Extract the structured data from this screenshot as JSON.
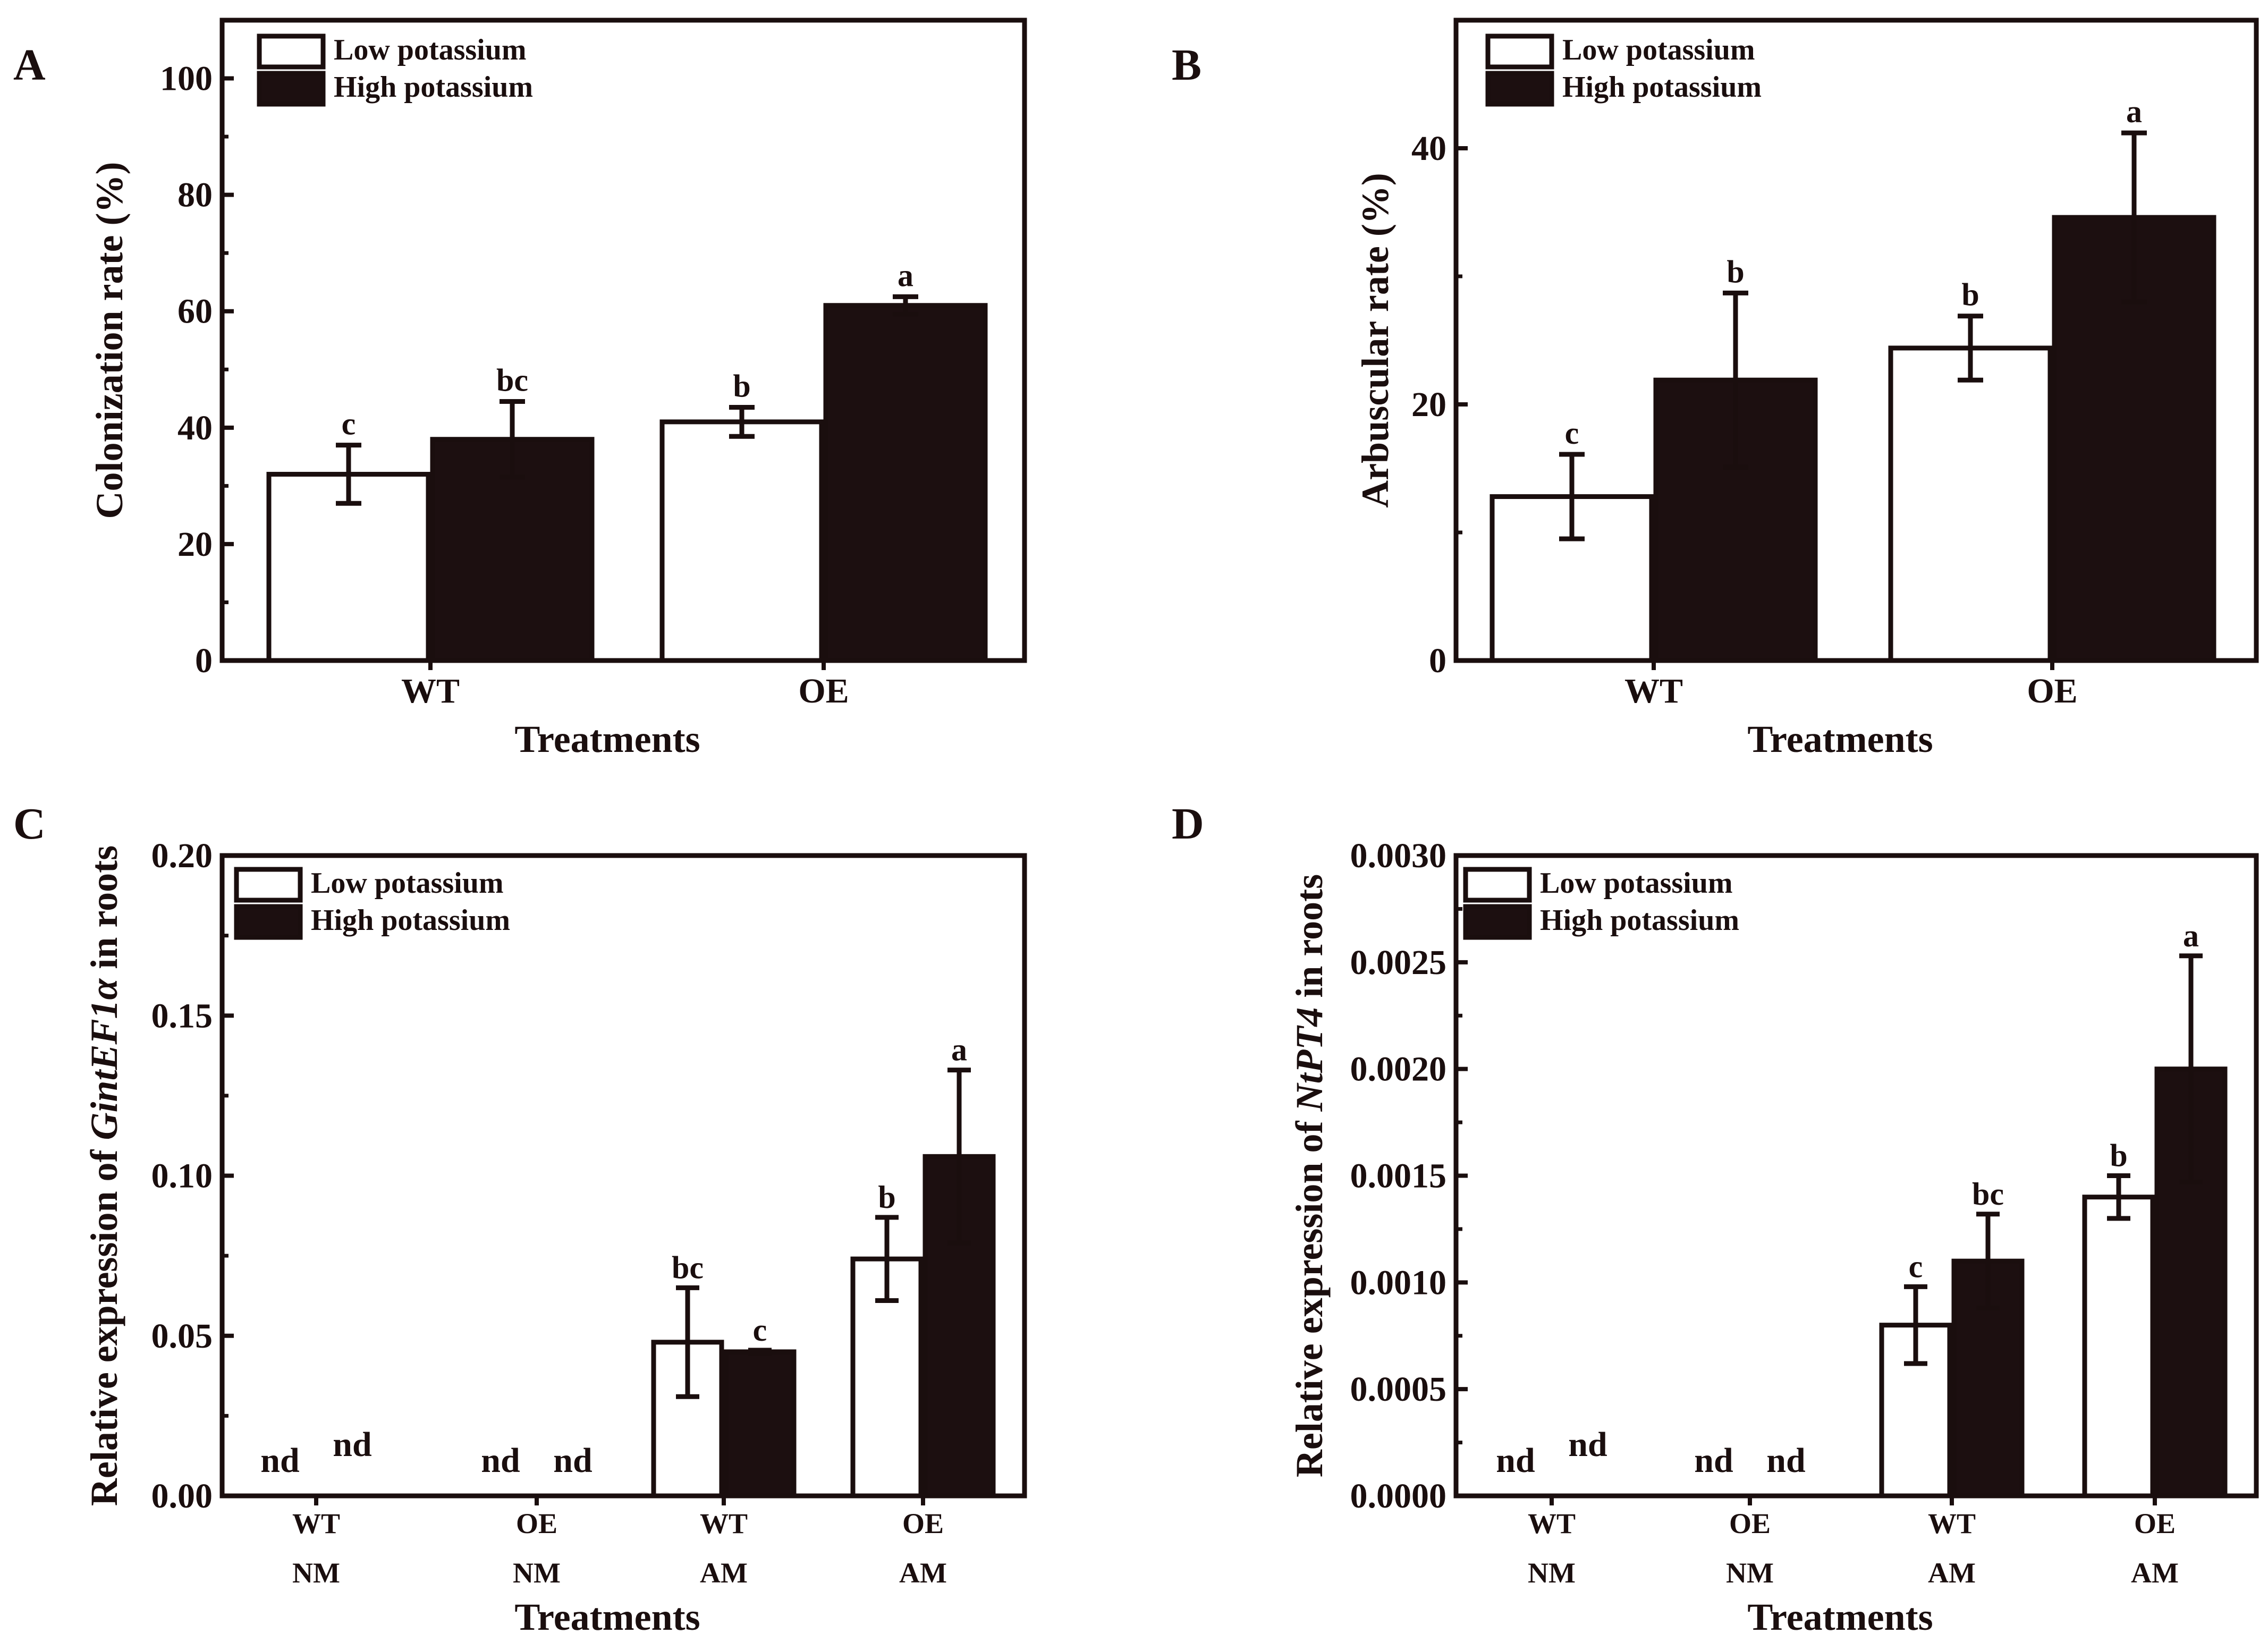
{
  "colors": {
    "ink": "#1a0e0e",
    "low": "#ffffff",
    "high": "#1c0f10",
    "bg": "#ffffff"
  },
  "chart_data": [
    {
      "type": "bar",
      "panel": "A",
      "title": "",
      "xlabel": "Treatments",
      "ylabel": "Colonization rate (%)",
      "ylabel_parts": [
        "Colonization rate (%)"
      ],
      "ylim": [
        0,
        110
      ],
      "yticks": [
        0,
        20,
        40,
        60,
        80,
        100
      ],
      "ytick_labels": [
        "0",
        "20",
        "40",
        "60",
        "80",
        "100"
      ],
      "categories": [
        [
          "WT"
        ],
        [
          "OE"
        ]
      ],
      "legend": [
        "Low potassium",
        "High potassium"
      ],
      "legend_position": "top-left",
      "series": [
        {
          "name": "Low potassium",
          "values": [
            32,
            41
          ],
          "errors": [
            5,
            2.5
          ],
          "labels": [
            "c",
            "b"
          ],
          "nd": [
            false,
            false
          ]
        },
        {
          "name": "High potassium",
          "values": [
            38,
            61
          ],
          "errors": [
            6.5,
            1.5
          ],
          "labels": [
            "bc",
            "a"
          ],
          "nd": [
            false,
            false
          ]
        }
      ]
    },
    {
      "type": "bar",
      "panel": "B",
      "title": "",
      "xlabel": "Treatments",
      "ylabel": "Arbuscular rate (%)",
      "ylabel_parts": [
        "Arbuscular rate (%)"
      ],
      "ylim": [
        0,
        50
      ],
      "yticks": [
        0,
        20,
        40
      ],
      "ytick_labels": [
        "0",
        "20",
        "40"
      ],
      "categories": [
        [
          "WT"
        ],
        [
          "OE"
        ]
      ],
      "legend": [
        "Low potassium",
        "High potassium"
      ],
      "legend_position": "top-left",
      "series": [
        {
          "name": "Low potassium",
          "values": [
            12.8,
            24.4
          ],
          "errors": [
            3.3,
            2.5
          ],
          "labels": [
            "c",
            "b"
          ],
          "nd": [
            false,
            false
          ]
        },
        {
          "name": "High potassium",
          "values": [
            21.9,
            34.6
          ],
          "errors": [
            6.8,
            6.6
          ],
          "labels": [
            "b",
            "a"
          ],
          "nd": [
            false,
            false
          ]
        }
      ]
    },
    {
      "type": "bar",
      "panel": "C",
      "title": "",
      "xlabel": "Treatments",
      "ylabel": "Relative expression of GintEF1α in roots",
      "ylabel_parts": [
        "Relative expression of ",
        "GintEF1α",
        " in roots"
      ],
      "ylim": [
        0,
        0.2
      ],
      "yticks": [
        0,
        0.05,
        0.1,
        0.15,
        0.2
      ],
      "ytick_labels": [
        "0.00",
        "0.05",
        "0.10",
        "0.15",
        "0.20"
      ],
      "categories": [
        [
          "WT",
          "NM"
        ],
        [
          "OE",
          "NM"
        ],
        [
          "WT",
          "AM"
        ],
        [
          "OE",
          "AM"
        ]
      ],
      "legend": [
        "Low potassium",
        "High potassium"
      ],
      "legend_position": "top-left",
      "series": [
        {
          "name": "Low potassium",
          "values": [
            0,
            0,
            0.048,
            0.074
          ],
          "errors": [
            0,
            0,
            0.017,
            0.013
          ],
          "labels": [
            "nd",
            "nd",
            "bc",
            "b"
          ],
          "nd": [
            true,
            true,
            false,
            false
          ]
        },
        {
          "name": "High potassium",
          "values": [
            0,
            0,
            0.045,
            0.106
          ],
          "errors": [
            0,
            0,
            0.0005,
            0.027
          ],
          "labels": [
            "nd",
            "nd",
            "c",
            "a"
          ],
          "nd": [
            true,
            true,
            false,
            false
          ]
        }
      ]
    },
    {
      "type": "bar",
      "panel": "D",
      "title": "",
      "xlabel": "Treatments",
      "ylabel": "Relative expression of NtPT4 in roots",
      "ylabel_parts": [
        "Relative expression of ",
        "NtPT4",
        " in roots"
      ],
      "ylim": [
        0,
        0.003
      ],
      "yticks": [
        0,
        0.0005,
        0.001,
        0.0015,
        0.002,
        0.0025,
        0.003
      ],
      "ytick_labels": [
        "0.0000",
        "0.0005",
        "0.0010",
        "0.0015",
        "0.0020",
        "0.0025",
        "0.0030"
      ],
      "categories": [
        [
          "WT",
          "NM"
        ],
        [
          "OE",
          "NM"
        ],
        [
          "WT",
          "AM"
        ],
        [
          "OE",
          "AM"
        ]
      ],
      "legend": [
        "Low potassium",
        "High potassium"
      ],
      "legend_position": "top-left",
      "series": [
        {
          "name": "Low potassium",
          "values": [
            0,
            0,
            0.0008,
            0.0014
          ],
          "errors": [
            0,
            0,
            0.00018,
            0.0001
          ],
          "labels": [
            "nd",
            "nd",
            "c",
            "b"
          ],
          "nd": [
            true,
            true,
            false,
            false
          ]
        },
        {
          "name": "High potassium",
          "values": [
            0,
            0,
            0.0011,
            0.002
          ],
          "errors": [
            0,
            0,
            0.00022,
            0.00053
          ],
          "labels": [
            "nd",
            "nd",
            "bc",
            "a"
          ],
          "nd": [
            true,
            true,
            false,
            false
          ]
        }
      ]
    }
  ]
}
